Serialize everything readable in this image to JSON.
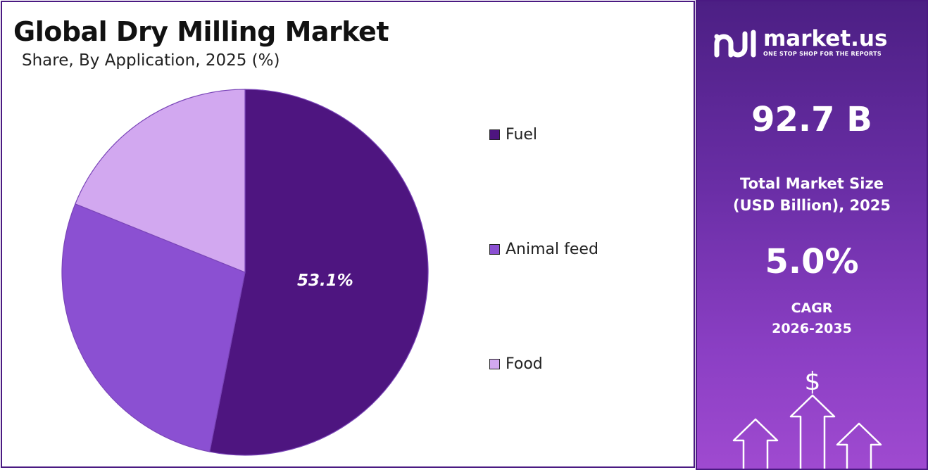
{
  "header": {
    "title": "Global Dry Milling Market",
    "subtitle": "Share, By Application, 2025 (%)"
  },
  "chart_data": {
    "type": "pie",
    "categories": [
      "Fuel",
      "Animal feed",
      "Food"
    ],
    "values": [
      53.1,
      28.0,
      18.9
    ],
    "colors": [
      "#4e1580",
      "#8b50d2",
      "#d2a8f0"
    ],
    "data_labels": [
      "53.1%",
      "",
      ""
    ],
    "legend_position": "right",
    "start_angle": "12 o'clock, clockwise"
  },
  "legend": {
    "items": [
      {
        "label": "Fuel",
        "color": "#4e1580"
      },
      {
        "label": "Animal feed",
        "color": "#8b50d2"
      },
      {
        "label": "Food",
        "color": "#d2a8f0"
      }
    ]
  },
  "sidebar": {
    "brand_name": "market.us",
    "brand_tagline": "ONE STOP SHOP FOR THE REPORTS",
    "market_size_value": "92.7 B",
    "market_size_label_line1": "Total Market Size",
    "market_size_label_line2": "(USD Billion), 2025",
    "cagr_value": "5.0%",
    "cagr_label_line1": "CAGR",
    "cagr_label_line2": "2026-2035",
    "currency_symbol": "$"
  }
}
